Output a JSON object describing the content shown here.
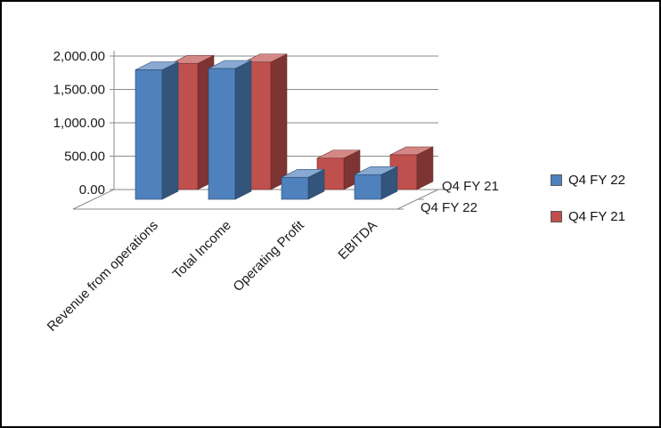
{
  "chart_data": {
    "type": "bar",
    "variant": "3d-column",
    "title": "",
    "categories": [
      "Revenue from operations",
      "Total Income",
      "Operating Profit",
      "EBITDA"
    ],
    "series": [
      {
        "name": "Q4 FY 22",
        "color": "#4F81BD",
        "values": [
          1940,
          1960,
          330,
          370
        ]
      },
      {
        "name": "Q4 FY 21",
        "color": "#C0504D",
        "values": [
          1890,
          1910,
          470,
          520
        ]
      }
    ],
    "value_axis": {
      "min": 0,
      "max": 2000,
      "step": 500,
      "tick_labels": [
        "0.00",
        "500.00",
        "1,000.00",
        "1,500.00",
        "2,000.00"
      ]
    },
    "depth_axis_labels": [
      "Q4 FY 21",
      "Q4 FY 22"
    ],
    "legend": {
      "position": "right",
      "entries": [
        "Q4 FY 22",
        "Q4 FY 21"
      ]
    },
    "grid": true,
    "gridline_color": "#8a8a8a",
    "axis_text_color": "#1a1a1a",
    "floor_color": "#ffffff",
    "background_color": "#ffffff",
    "border_color": "#000000"
  }
}
